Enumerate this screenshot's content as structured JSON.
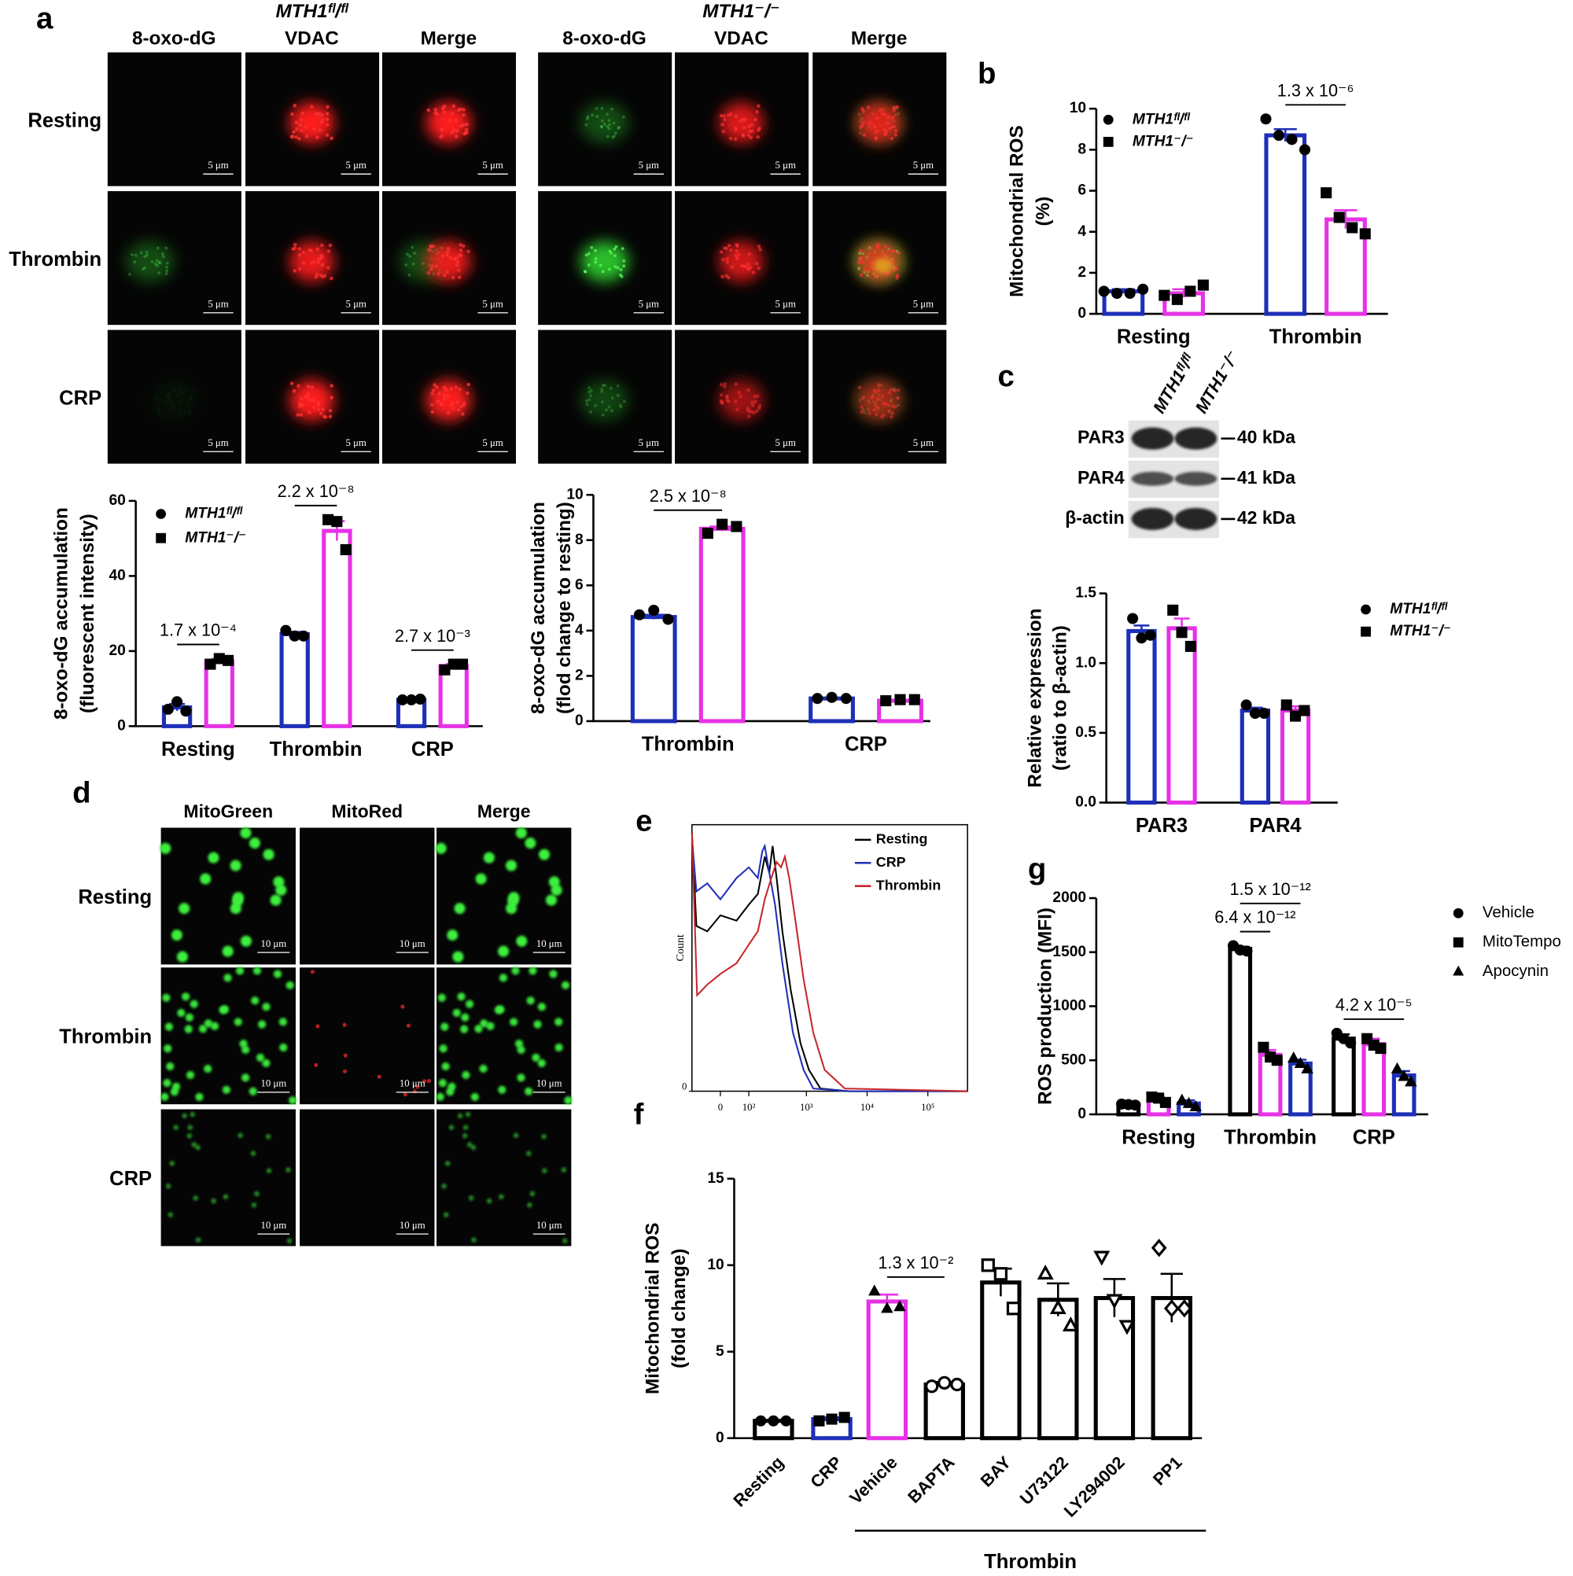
{
  "panel_labels": [
    "a",
    "b",
    "c",
    "d",
    "e",
    "f",
    "g"
  ],
  "microscopy_a": {
    "genotypes": [
      "MTH1ᶠˡ/ᶠˡ",
      "MTH1⁻/⁻"
    ],
    "channels": [
      "8-oxo-dG",
      "VDAC",
      "Merge"
    ],
    "rows": [
      "Resting",
      "Thrombin",
      "CRP"
    ],
    "scale_bar": "5 μm"
  },
  "blot_c": {
    "lanes": [
      "MTH1ᶠˡ/ᶠˡ",
      "MTH1⁻/⁻"
    ],
    "proteins": [
      {
        "name": "PAR3",
        "size": "40 kDa"
      },
      {
        "name": "PAR4",
        "size": "41 kDa"
      },
      {
        "name": "β-actin",
        "size": "42 kDa"
      }
    ]
  },
  "microscopy_d": {
    "channels": [
      "MitoGreen",
      "MitoRed",
      "Merge"
    ],
    "rows": [
      "Resting",
      "Thrombin",
      "CRP"
    ],
    "scale_bar": "10 μm"
  },
  "chart_data": [
    {
      "type": "bar",
      "ylabel": [
        "8-oxo-dG accumulation",
        "(fluorescent intensity)"
      ],
      "categories": [
        "Resting",
        "Thrombin",
        "CRP"
      ],
      "series": [
        {
          "name": "MTH1ᶠˡ/ᶠˡ",
          "color": "#1e2fb8",
          "marker": "circle",
          "values": [
            5,
            24.5,
            7
          ],
          "errors": [
            0.9,
            0.6,
            0.2
          ],
          "points": [
            [
              4.5,
              6.5,
              4
            ],
            [
              25.5,
              24,
              24
            ],
            [
              7,
              7,
              7.2
            ]
          ]
        },
        {
          "name": "MTH1⁻/⁻",
          "color": "#e632e6",
          "marker": "square",
          "values": [
            17.3,
            52,
            16
          ],
          "errors": [
            0.6,
            2.6,
            0.5
          ],
          "points": [
            [
              16.5,
              18,
              17.5
            ],
            [
              55,
              54.5,
              47
            ],
            [
              15,
              16.5,
              16.5
            ]
          ]
        }
      ],
      "ylim": [
        0,
        60
      ],
      "yticks": [
        0,
        20,
        40,
        60
      ],
      "legend": true,
      "annotations": [
        {
          "text": "1.7 x 10⁻⁴",
          "from": [
            0,
            0
          ],
          "to": [
            0,
            1
          ]
        },
        {
          "text": "2.2 x 10⁻⁸",
          "from": [
            1,
            0
          ],
          "to": [
            1,
            1
          ]
        },
        {
          "text": "2.7 x 10⁻³",
          "from": [
            2,
            0
          ],
          "to": [
            2,
            1
          ]
        }
      ]
    },
    {
      "type": "bar",
      "ylabel": [
        "8-oxo-dG accumulation",
        "(flod change to resting)"
      ],
      "categories": [
        "Thrombin",
        "CRP"
      ],
      "series": [
        {
          "color": "#1e2fb8",
          "marker": "circle",
          "values": [
            4.6,
            1.0
          ],
          "errors": [
            0.1,
            0.02
          ],
          "points": [
            [
              4.7,
              4.9,
              4.5
            ],
            [
              1.0,
              1.05,
              1.0
            ]
          ]
        },
        {
          "color": "#e632e6",
          "marker": "square",
          "values": [
            8.5,
            0.9
          ],
          "errors": [
            0.1,
            0.03
          ],
          "points": [
            [
              8.3,
              8.7,
              8.6
            ],
            [
              0.9,
              0.95,
              0.95
            ]
          ]
        }
      ],
      "ylim": [
        0,
        10
      ],
      "yticks": [
        0,
        2,
        4,
        6,
        8,
        10
      ],
      "legend": false,
      "annotations": [
        {
          "text": "2.5 x 10⁻⁸",
          "from": [
            0,
            0
          ],
          "to": [
            0,
            1
          ]
        }
      ]
    },
    {
      "type": "bar",
      "ylabel": [
        "Mitochondrial ROS",
        "(%)"
      ],
      "categories": [
        "Resting",
        "Thrombin"
      ],
      "series": [
        {
          "name": "MTH1ᶠˡ/ᶠˡ",
          "color": "#1e2fb8",
          "marker": "circle",
          "values": [
            1.1,
            8.7
          ],
          "errors": [
            0.1,
            0.3
          ],
          "points": [
            [
              1.1,
              1.0,
              1.0,
              1.2
            ],
            [
              9.5,
              8.7,
              8.5,
              8.0
            ]
          ]
        },
        {
          "name": "MTH1⁻/⁻",
          "color": "#e632e6",
          "marker": "square",
          "values": [
            1.0,
            4.6
          ],
          "errors": [
            0.2,
            0.45
          ],
          "points": [
            [
              0.9,
              0.7,
              1.1,
              1.4
            ],
            [
              5.9,
              4.7,
              4.2,
              3.9
            ]
          ]
        }
      ],
      "ylim": [
        0,
        10
      ],
      "yticks": [
        0,
        2,
        4,
        6,
        8,
        10
      ],
      "legend": true,
      "annotations": [
        {
          "text": "1.3 x 10⁻⁶",
          "from": [
            1,
            0
          ],
          "to": [
            1,
            1
          ]
        }
      ]
    },
    {
      "type": "bar",
      "ylabel": [
        "Relative expression",
        "(ratio to β-actin)"
      ],
      "categories": [
        "PAR3",
        "PAR4"
      ],
      "series": [
        {
          "name": "MTH1ᶠˡ/ᶠˡ",
          "color": "#1e2fb8",
          "marker": "circle",
          "values": [
            1.23,
            0.66
          ],
          "errors": [
            0.04,
            0.02
          ],
          "points": [
            [
              1.32,
              1.18,
              1.2
            ],
            [
              0.7,
              0.64,
              0.64
            ]
          ]
        },
        {
          "name": "MTH1⁻/⁻",
          "color": "#e632e6",
          "marker": "square",
          "values": [
            1.25,
            0.66
          ],
          "errors": [
            0.07,
            0.03
          ],
          "points": [
            [
              1.38,
              1.22,
              1.12
            ],
            [
              0.7,
              0.62,
              0.66
            ]
          ]
        }
      ],
      "ylim": [
        0,
        1.5
      ],
      "yticks": [
        {
          "value": 0,
          "label": "0.0"
        },
        {
          "value": 0.5,
          "label": "0.5"
        },
        {
          "value": 1,
          "label": "1.0"
        },
        {
          "value": 1.5,
          "label": "1.5"
        }
      ],
      "legend": true,
      "annotations": []
    },
    {
      "type": "line",
      "ylabel": "Count",
      "xscale": "biexponential",
      "xlim": [
        -100,
        450000
      ],
      "xticks": [
        0,
        {
          "value": 100,
          "label": "10²"
        },
        {
          "value": 1000,
          "label": "10³"
        },
        {
          "value": 10000,
          "label": "10⁴"
        },
        {
          "value": 100000,
          "label": "10⁵"
        }
      ],
      "ylim": [
        0,
        100
      ],
      "yticks": [
        0
      ],
      "legend": true,
      "series": [
        {
          "name": "Resting",
          "color": "#000000",
          "x": [
            -100,
            -80,
            -40,
            0,
            50,
            100,
            150,
            200,
            240,
            273,
            320,
            400,
            550,
            800,
            1100,
            1700,
            5000,
            450000
          ],
          "values": [
            97,
            62,
            60,
            66,
            64,
            70,
            74,
            88,
            82,
            92,
            80,
            60,
            38,
            18,
            8,
            1,
            0,
            0
          ]
        },
        {
          "name": "CRP",
          "color": "#1e2fb8",
          "x": [
            -100,
            -80,
            -40,
            0,
            50,
            100,
            150,
            180,
            200,
            240,
            300,
            400,
            600,
            900,
            1300,
            5000,
            450000
          ],
          "values": [
            95,
            75,
            78,
            72,
            80,
            84,
            80,
            90,
            92,
            82,
            70,
            48,
            22,
            8,
            1,
            0,
            0
          ]
        },
        {
          "name": "Thrombin",
          "color": "#c8262a",
          "x": [
            -100,
            -77,
            -40,
            0,
            50,
            100,
            150,
            200,
            260,
            320,
            380,
            440,
            520,
            650,
            900,
            1300,
            2000,
            4300,
            450000
          ],
          "values": [
            97,
            36,
            40,
            44,
            48,
            55,
            60,
            72,
            80,
            86,
            84,
            88,
            80,
            65,
            42,
            22,
            8,
            1,
            0
          ]
        }
      ]
    },
    {
      "type": "bar",
      "ylabel": "ROS production (MFI)",
      "categories": [
        "Resting",
        "Thrombin",
        "CRP"
      ],
      "series": [
        {
          "name": "Vehicle",
          "color": "#000000",
          "marker": "circle",
          "values": [
            90,
            1530,
            700
          ],
          "errors": [
            8,
            20,
            40
          ],
          "points": [
            [
              95,
              90,
              85
            ],
            [
              1560,
              1520,
              1510
            ],
            [
              750,
              700,
              660
            ]
          ]
        },
        {
          "name": "MitoTempo",
          "color": "#e632e6",
          "marker": "square",
          "values": [
            140,
            550,
            650
          ],
          "errors": [
            25,
            45,
            50
          ],
          "points": [
            [
              160,
              150,
              110
            ],
            [
              620,
              530,
              500
            ],
            [
              700,
              640,
              610
            ]
          ]
        },
        {
          "name": "Apocynin",
          "color": "#1e2fb8",
          "marker": "triangle",
          "values": [
            100,
            470,
            360
          ],
          "errors": [
            30,
            35,
            40
          ],
          "points": [
            [
              130,
              100,
              70
            ],
            [
              520,
              470,
              420
            ],
            [
              420,
              350,
              300
            ]
          ]
        }
      ],
      "ylim": [
        0,
        2000
      ],
      "yticks": [
        0,
        500,
        1000,
        1500,
        2000
      ],
      "legend": true,
      "annotations": [
        {
          "text": "6.4 x 10⁻¹²",
          "from": [
            1,
            0
          ],
          "to": [
            1,
            1
          ]
        },
        {
          "text": "1.5 x 10⁻¹²",
          "from": [
            1,
            0
          ],
          "to": [
            1,
            2
          ]
        },
        {
          "text": "4.2 x 10⁻⁵",
          "from": [
            2,
            0
          ],
          "to": [
            2,
            2
          ]
        }
      ]
    },
    {
      "type": "bar",
      "ylabel": [
        "Mitochondrial ROS",
        "(fold change)"
      ],
      "categories": [
        "Resting",
        "CRP",
        "Vehicle",
        "BAPTA",
        "BAY",
        "U73122",
        "LY294002",
        "PP1"
      ],
      "values": [
        1.0,
        1.1,
        7.9,
        3.1,
        9.0,
        8.0,
        8.1,
        8.1
      ],
      "errors": [
        0.02,
        0.1,
        0.4,
        0.15,
        0.8,
        0.95,
        1.1,
        1.4
      ],
      "points": [
        [
          1,
          1,
          1
        ],
        [
          1,
          1.1,
          1.2
        ],
        [
          8.5,
          7.5,
          7.6
        ],
        [
          3,
          3.2,
          3.1
        ],
        [
          10,
          9.5,
          7.5
        ],
        [
          9.5,
          7.5,
          6.5
        ],
        [
          10.5,
          8,
          6.5
        ],
        [
          11,
          7.5,
          7.5
        ]
      ],
      "colors": [
        "#000000",
        "#1e2fb8",
        "#e632e6",
        "#000000",
        "#000000",
        "#000000",
        "#000000",
        "#000000"
      ],
      "markers": [
        "circle",
        "square",
        "triangle",
        "circle-open",
        "square-open",
        "triangle-open",
        "tri-down-open",
        "diamond-open"
      ],
      "ylim": [
        0,
        15
      ],
      "yticks": [
        0,
        5,
        10,
        15
      ],
      "legend": false,
      "group": {
        "label": "Thrombin",
        "from": 2,
        "to": 7
      },
      "annotations": [
        {
          "text": "1.3 x 10⁻²",
          "from": [
            2,
            0
          ],
          "to": [
            3,
            0
          ]
        }
      ]
    }
  ]
}
